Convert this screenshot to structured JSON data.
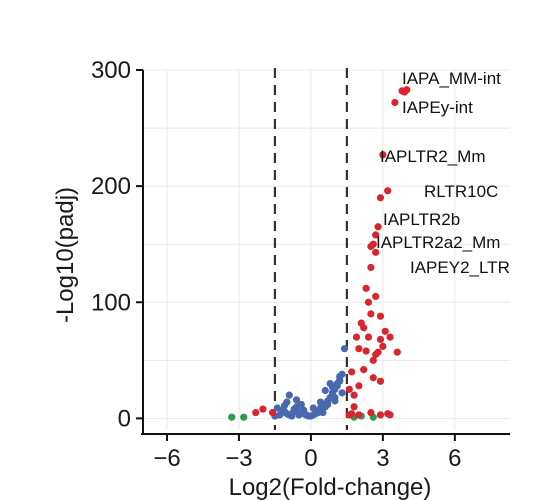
{
  "chart_data": {
    "type": "scatter",
    "title": "",
    "xlabel": "Log2(Fold-change)",
    "ylabel": "-Log10(padj)",
    "xlim": [
      -7,
      8.3
    ],
    "ylim": [
      -10,
      300
    ],
    "x_ticks": [
      -6,
      -3,
      0,
      3,
      6
    ],
    "x_tick_labels": [
      "−6",
      "−3",
      "0",
      "3",
      "6"
    ],
    "y_ticks": [
      0,
      100,
      200,
      300
    ],
    "y_tick_labels": [
      "0",
      "100",
      "200",
      "300"
    ],
    "grid": true,
    "thresholds": {
      "log2fc": [
        -1.5,
        1.5
      ]
    },
    "colors": {
      "up": "#d7262e",
      "down_nonsig": "#4a68ad",
      "other": "#2e9a4a"
    },
    "labels": [
      {
        "text": "IAPA_MM-int",
        "x": 3.9,
        "y": 282
      },
      {
        "text": "IAPEy-int",
        "x": 3.5,
        "y": 272
      },
      {
        "text": "IAPLTR2_Mm",
        "x": 3.0,
        "y": 227
      },
      {
        "text": "RLTR10C",
        "x": 3.2,
        "y": 196
      },
      {
        "text": "IAPLTR2b",
        "x": 2.8,
        "y": 163
      },
      {
        "text": "IAPLTR2a2_Mm",
        "x": 2.7,
        "y": 150
      },
      {
        "text": "IAPEY2_LTR",
        "x": 2.6,
        "y": 143
      }
    ],
    "series": [
      {
        "group": "up",
        "x": [
          3.8,
          4.0,
          3.9,
          3.5,
          3.0,
          3.2,
          2.9,
          2.8,
          2.7,
          2.6,
          2.5,
          2.7,
          2.5,
          2.3,
          2.4,
          2.5,
          2.2,
          2.7,
          2.9,
          2.4,
          2.1,
          2.9,
          3.1,
          3.3,
          3.0,
          2.8,
          3.6,
          2.7,
          2.6,
          2.3,
          1.9,
          2.0,
          1.7,
          2.2,
          2.6,
          2.9,
          2.0,
          1.8,
          1.6,
          1.8,
          1.6,
          2.5,
          3.2,
          1.7,
          2.0,
          -1.6,
          -2.0,
          -2.3,
          2.9,
          3.3
        ],
        "y": [
          282,
          283,
          281,
          272,
          227,
          196,
          190,
          165,
          158,
          150,
          148,
          143,
          130,
          112,
          100,
          90,
          78,
          105,
          88,
          70,
          82,
          68,
          75,
          70,
          62,
          57,
          57,
          55,
          50,
          58,
          70,
          60,
          40,
          42,
          35,
          32,
          28,
          20,
          25,
          10,
          3,
          5,
          4,
          4,
          3,
          5,
          8,
          5,
          3,
          3
        ]
      },
      {
        "group": "down_nonsig",
        "x": [
          -1.5,
          -1.3,
          -1.2,
          -1.1,
          -1.0,
          -0.9,
          -0.8,
          -0.7,
          -0.6,
          -0.5,
          -0.4,
          -0.3,
          -0.2,
          -0.1,
          0.0,
          0.1,
          0.2,
          0.3,
          0.4,
          0.5,
          0.6,
          0.7,
          0.8,
          0.9,
          1.0,
          1.1,
          1.2,
          1.3,
          1.4,
          -1.0,
          -0.6,
          -0.2,
          0.3,
          0.6,
          0.9,
          1.1,
          1.2,
          0.7,
          0.5,
          -0.7,
          -0.9,
          -1.4,
          -1.2,
          0.2,
          0.4,
          -0.4,
          1.0,
          1.3,
          -0.8,
          -1.1,
          0.8,
          1.0,
          0.6,
          -0.5,
          0.1,
          -0.3,
          0.9,
          1.2,
          0.4,
          -0.6
        ],
        "y": [
          2,
          3,
          5,
          6,
          4,
          3,
          2,
          8,
          10,
          6,
          5,
          4,
          3,
          2,
          2,
          3,
          4,
          5,
          8,
          10,
          12,
          15,
          18,
          20,
          25,
          30,
          33,
          38,
          60,
          14,
          7,
          3,
          6,
          10,
          22,
          28,
          32,
          12,
          5,
          6,
          20,
          9,
          7,
          5,
          9,
          12,
          18,
          22,
          4,
          11,
          30,
          15,
          24,
          3,
          9,
          7,
          27,
          36,
          14,
          16
        ]
      },
      {
        "group": "other",
        "x": [
          -3.3,
          -2.8,
          1.8,
          2.1,
          2.6
        ],
        "y": [
          1,
          1,
          1,
          2,
          1
        ]
      }
    ]
  }
}
